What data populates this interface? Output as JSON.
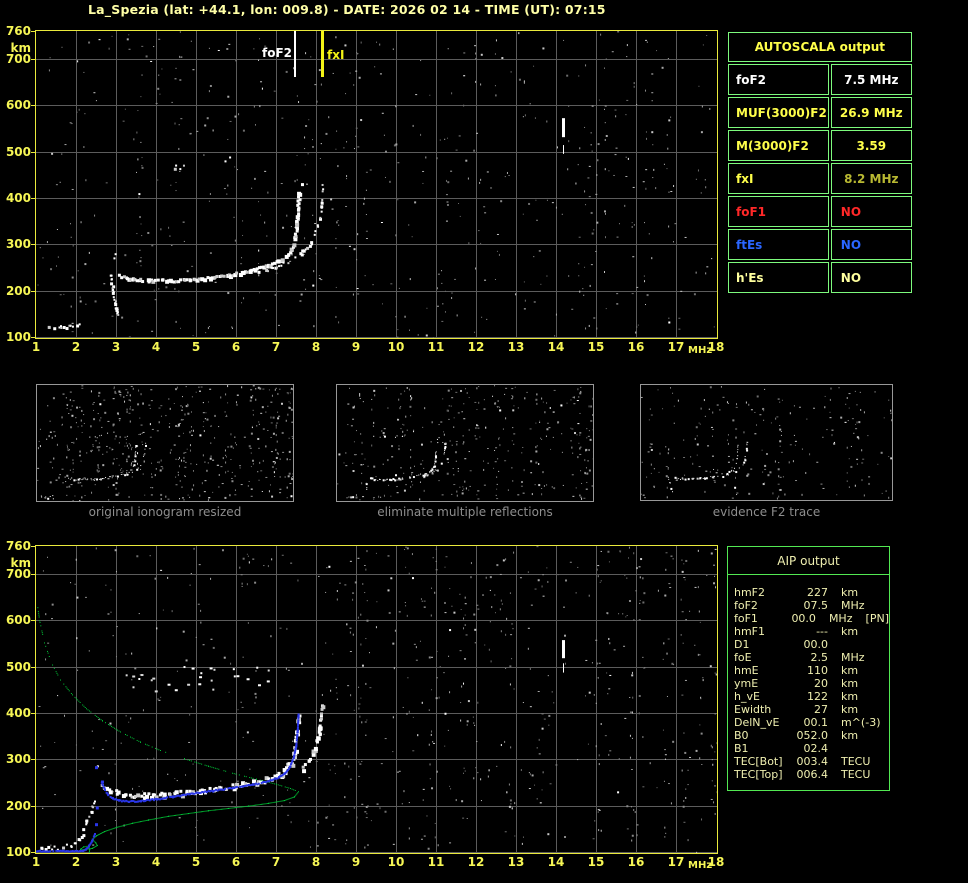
{
  "title": "La_Spezia (lat: +44.1, lon: 009.8) - DATE: 2026 02 14 - TIME (UT): 07:15",
  "colors": {
    "title": "#ffffa6",
    "axis_label": "#f6f655",
    "plot_border": "#eaea3c",
    "grid": "#5c5c5c",
    "caption": "#8e8e8e",
    "thumb_border": "#989898",
    "trace_white": "#ffffff",
    "profile_green": "#00c838",
    "trace_blue": "#2a36e8",
    "autoscala_border": "#7dfa7d",
    "aip_border": "#52e852",
    "aip_text": "#efefb0",
    "autoscala_title_color": "#ffff4a"
  },
  "top_chart": {
    "x_ticks": [
      "1",
      "2",
      "3",
      "4",
      "5",
      "6",
      "7",
      "8",
      "9",
      "10",
      "11",
      "12",
      "13",
      "14",
      "15",
      "16",
      "17",
      "18"
    ],
    "x_unit": "MHz",
    "y_ticks": [
      "760",
      "700",
      "600",
      "500",
      "400",
      "300",
      "200",
      "100"
    ],
    "y_unit": "km",
    "markers": [
      {
        "label": "foF2",
        "freq": 7.48,
        "color": "#ffffff"
      },
      {
        "label": "fxI",
        "freq": 8.16,
        "color": "#f3f316"
      }
    ],
    "interference": {
      "freq": 14.17,
      "segments": [
        [
          531,
          572
        ],
        [
          495,
          514
        ]
      ]
    },
    "noise": {
      "speckles": 340,
      "columns": 58
    },
    "traces": {
      "e_region": [
        [
          1.3,
          121
        ],
        [
          1.6,
          123
        ],
        [
          1.85,
          125
        ],
        [
          2.05,
          129
        ]
      ],
      "f_cusp_left": [
        [
          2.85,
          238
        ],
        [
          2.9,
          205
        ],
        [
          2.95,
          180
        ],
        [
          3.0,
          158
        ],
        [
          3.05,
          146
        ]
      ],
      "f_cusp_upper": [
        [
          2.88,
          252
        ],
        [
          2.93,
          268
        ],
        [
          2.98,
          284
        ]
      ],
      "f_main": [
        [
          3.05,
          234
        ],
        [
          3.4,
          227
        ],
        [
          3.8,
          224
        ],
        [
          4.3,
          224
        ],
        [
          4.8,
          226
        ],
        [
          5.3,
          230
        ],
        [
          5.8,
          236
        ],
        [
          6.3,
          245
        ],
        [
          6.8,
          257
        ],
        [
          7.1,
          268
        ],
        [
          7.3,
          283
        ],
        [
          7.42,
          305
        ],
        [
          7.48,
          335
        ],
        [
          7.52,
          375
        ],
        [
          7.55,
          415
        ]
      ],
      "x_branch": [
        [
          6.5,
          240
        ],
        [
          6.9,
          250
        ],
        [
          7.3,
          264
        ],
        [
          7.6,
          282
        ],
        [
          7.85,
          305
        ],
        [
          8.0,
          333
        ],
        [
          8.08,
          362
        ],
        [
          8.13,
          395
        ],
        [
          8.16,
          435
        ]
      ],
      "second_hop": [
        [
          4.1,
          473
        ],
        [
          4.5,
          468
        ],
        [
          4.9,
          469
        ],
        [
          5.3,
          475
        ],
        [
          5.7,
          485
        ],
        [
          6.05,
          500
        ]
      ],
      "cusp_echo": [
        [
          7.62,
          435
        ],
        [
          7.7,
          458
        ],
        [
          7.76,
          482
        ]
      ]
    }
  },
  "autoscala": {
    "title": "AUTOSCALA output",
    "rows": [
      {
        "label": "foF2",
        "value": "7.5 MHz",
        "label_color": "#ffffff",
        "value_color": "#ffffff",
        "align": "center"
      },
      {
        "label": "MUF(3000)F2",
        "value": "26.9 MHz",
        "label_color": "#ffff4a",
        "value_color": "#ffff4a",
        "align": "center"
      },
      {
        "label": "M(3000)F2",
        "value": "3.59",
        "label_color": "#ffff4a",
        "value_color": "#ffff4a",
        "align": "center"
      },
      {
        "label": "fxI",
        "value": "8.2 MHz",
        "label_color": "#ffff4a",
        "value_color": "#b9b932",
        "align": "center"
      },
      {
        "label": "foF1",
        "value": "NO",
        "label_color": "#ff2828",
        "value_color": "#ff2828",
        "align": "left"
      },
      {
        "label": "ftEs",
        "value": "NO",
        "label_color": "#2a66ff",
        "value_color": "#2a66ff",
        "align": "left"
      },
      {
        "label": "h'Es",
        "value": "NO",
        "label_color": "#ffff9e",
        "value_color": "#ffff9e",
        "align": "left"
      }
    ]
  },
  "thumbnails": [
    {
      "caption": "original ionogram resized",
      "speckles": 250,
      "columns": 66,
      "mode": "full"
    },
    {
      "caption": "eliminate multiple reflections",
      "speckles": 175,
      "columns": 44,
      "mode": "full"
    },
    {
      "caption": "evidence F2 trace",
      "speckles": 120,
      "columns": 26,
      "mode": "f2"
    }
  ],
  "bottom_chart": {
    "x_ticks": [
      "1",
      "2",
      "3",
      "4",
      "5",
      "6",
      "7",
      "8",
      "9",
      "10",
      "11",
      "12",
      "13",
      "14",
      "15",
      "16",
      "17",
      "18"
    ],
    "x_unit": "MHz",
    "y_ticks": [
      "760",
      "700",
      "600",
      "500",
      "400",
      "300",
      "200",
      "100"
    ],
    "y_unit": "km",
    "interference": {
      "freq": 14.17,
      "segments": [
        [
          518,
          557
        ],
        [
          487,
          507
        ]
      ]
    },
    "noise": {
      "speckles": 330,
      "columns": 84
    },
    "white_band": {
      "fmin": 3.2,
      "fmax": 6.8,
      "amin": 448,
      "amax": 505,
      "count": 28
    },
    "traces": {
      "e_region": [
        [
          1.1,
          108
        ],
        [
          1.5,
          111
        ],
        [
          1.9,
          116
        ],
        [
          2.05,
          128
        ],
        [
          2.15,
          145
        ],
        [
          2.25,
          168
        ],
        [
          2.35,
          192
        ],
        [
          2.42,
          215
        ]
      ],
      "upper_bits": [
        [
          2.5,
          278
        ],
        [
          2.56,
          292
        ]
      ],
      "f_main": [
        [
          2.6,
          248
        ],
        [
          2.8,
          236
        ],
        [
          3.0,
          230
        ],
        [
          3.3,
          226
        ],
        [
          3.7,
          224
        ],
        [
          4.2,
          226
        ],
        [
          4.7,
          230
        ],
        [
          5.2,
          235
        ],
        [
          5.7,
          241
        ],
        [
          6.2,
          248
        ],
        [
          6.7,
          257
        ],
        [
          7.0,
          266
        ],
        [
          7.2,
          277
        ],
        [
          7.35,
          295
        ],
        [
          7.45,
          320
        ],
        [
          7.5,
          355
        ],
        [
          7.53,
          395
        ]
      ],
      "x_branch": [
        [
          7.6,
          278
        ],
        [
          7.8,
          298
        ],
        [
          7.95,
          325
        ],
        [
          8.05,
          358
        ],
        [
          8.1,
          395
        ],
        [
          8.12,
          420
        ]
      ]
    },
    "green_profile": {
      "topside": [
        [
          1.0,
          648
        ],
        [
          1.08,
          600
        ],
        [
          1.2,
          552
        ],
        [
          1.38,
          508
        ],
        [
          1.6,
          472
        ],
        [
          1.9,
          440
        ],
        [
          2.25,
          410
        ],
        [
          2.65,
          384
        ],
        [
          3.1,
          360
        ],
        [
          3.6,
          338
        ],
        [
          4.1,
          320
        ],
        [
          4.7,
          302
        ],
        [
          5.3,
          286
        ],
        [
          5.9,
          271
        ],
        [
          6.5,
          258
        ],
        [
          7.0,
          247
        ],
        [
          7.35,
          238
        ],
        [
          7.55,
          231
        ]
      ],
      "bottomside": [
        [
          7.55,
          231
        ],
        [
          7.45,
          220
        ],
        [
          7.2,
          212
        ],
        [
          6.8,
          206
        ],
        [
          6.3,
          200
        ],
        [
          5.8,
          195
        ],
        [
          5.3,
          190
        ],
        [
          4.8,
          184
        ],
        [
          4.3,
          178
        ],
        [
          3.8,
          170
        ],
        [
          3.4,
          163
        ],
        [
          3.0,
          154
        ],
        [
          2.7,
          145
        ],
        [
          2.5,
          136
        ],
        [
          2.4,
          128
        ],
        [
          2.48,
          121
        ],
        [
          2.52,
          115
        ],
        [
          2.4,
          109
        ],
        [
          2.2,
          106
        ],
        [
          2.1,
          107
        ],
        [
          2.18,
          112
        ],
        [
          2.3,
          114
        ],
        [
          2.33,
          107
        ],
        [
          2.32,
          100
        ]
      ]
    },
    "blue_trace": {
      "e": [
        [
          1.0,
          104
        ],
        [
          2.15,
          104
        ],
        [
          2.22,
          107
        ],
        [
          2.3,
          115
        ],
        [
          2.38,
          126
        ],
        [
          2.45,
          140
        ]
      ],
      "diamonds": [
        [
          2.5,
          160
        ],
        [
          2.52,
          196
        ],
        [
          2.5,
          283
        ],
        [
          2.65,
          252
        ]
      ],
      "f": [
        [
          2.62,
          252
        ],
        [
          2.7,
          236
        ],
        [
          2.78,
          226
        ],
        [
          2.9,
          218
        ],
        [
          3.05,
          213
        ],
        [
          3.3,
          211
        ],
        [
          3.6,
          212
        ],
        [
          4.0,
          216
        ],
        [
          4.4,
          221
        ],
        [
          4.9,
          228
        ],
        [
          5.4,
          234
        ],
        [
          5.9,
          240
        ],
        [
          6.4,
          247
        ],
        [
          6.8,
          255
        ],
        [
          7.05,
          263
        ],
        [
          7.2,
          272
        ],
        [
          7.32,
          285
        ],
        [
          7.42,
          305
        ],
        [
          7.48,
          330
        ],
        [
          7.52,
          365
        ],
        [
          7.54,
          400
        ]
      ]
    }
  },
  "aip": {
    "title": "AIP output",
    "rows": [
      {
        "label": "hmF2",
        "value": "227",
        "unit": "km",
        "note": ""
      },
      {
        "label": "foF2",
        "value": "07.5",
        "unit": "MHz",
        "note": ""
      },
      {
        "label": "foF1",
        "value": "00.0",
        "unit": "MHz",
        "note": "[PN]"
      },
      {
        "label": "hmF1",
        "value": "---",
        "unit": "km",
        "note": ""
      },
      {
        "label": "D1",
        "value": "00.0",
        "unit": "",
        "note": ""
      },
      {
        "label": "foE",
        "value": "2.5",
        "unit": "MHz",
        "note": ""
      },
      {
        "label": "hmE",
        "value": "110",
        "unit": "km",
        "note": ""
      },
      {
        "label": "ymE",
        "value": "20",
        "unit": "km",
        "note": ""
      },
      {
        "label": "h_vE",
        "value": "122",
        "unit": "km",
        "note": ""
      },
      {
        "label": "Ewidth",
        "value": "27",
        "unit": "km",
        "note": ""
      },
      {
        "label": "DelN_vE",
        "value": "00.1",
        "unit": "m^(-3)",
        "note": ""
      },
      {
        "label": "B0",
        "value": "052.0",
        "unit": "km",
        "note": ""
      },
      {
        "label": "B1",
        "value": "02.4",
        "unit": "",
        "note": ""
      },
      {
        "label": "TEC[Bot]",
        "value": "003.4",
        "unit": "TECU",
        "note": ""
      },
      {
        "label": "TEC[Top]",
        "value": "006.4",
        "unit": "TECU",
        "note": ""
      }
    ]
  }
}
